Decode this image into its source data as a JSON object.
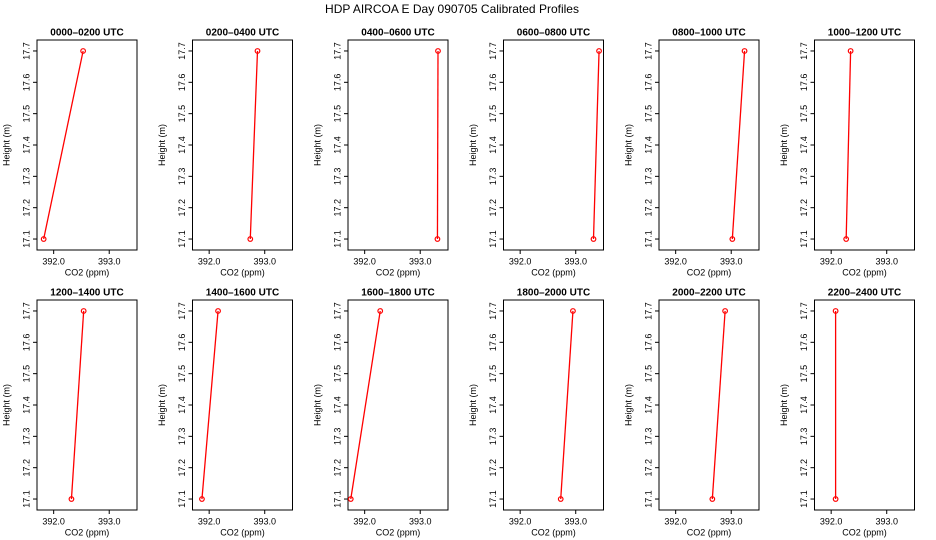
{
  "title": "HDP AIRCOA E  Day 090705  Calibrated Profiles",
  "chart_data": [
    {
      "type": "line",
      "title": "0000–0200 UTC",
      "xlabel": "CO2 (ppm)",
      "ylabel": "Height (m)",
      "x": [
        391.82,
        392.53
      ],
      "values": [
        17.1,
        17.7
      ],
      "color": "#ff0000",
      "xlim": [
        391.7,
        393.5
      ],
      "ylim": [
        17.065,
        17.735
      ],
      "xticks": [
        {
          "value": 392,
          "label": "392.0"
        },
        {
          "value": 393,
          "label": "393.0"
        }
      ],
      "yticks": [
        17.1,
        17.2,
        17.3,
        17.4,
        17.5,
        17.6,
        17.7
      ]
    },
    {
      "type": "line",
      "title": "0200–0400 UTC",
      "xlabel": "CO2 (ppm)",
      "ylabel": "Height (m)",
      "x": [
        392.74,
        392.87
      ],
      "values": [
        17.1,
        17.7
      ],
      "color": "#ff0000",
      "xlim": [
        391.7,
        393.5
      ],
      "ylim": [
        17.065,
        17.735
      ],
      "xticks": [
        {
          "value": 392,
          "label": "392.0"
        },
        {
          "value": 393,
          "label": "393.0"
        }
      ],
      "yticks": [
        17.1,
        17.2,
        17.3,
        17.4,
        17.5,
        17.6,
        17.7
      ]
    },
    {
      "type": "line",
      "title": "0400–0600 UTC",
      "xlabel": "CO2 (ppm)",
      "ylabel": "Height (m)",
      "x": [
        393.31,
        393.32
      ],
      "values": [
        17.1,
        17.7
      ],
      "color": "#ff0000",
      "xlim": [
        391.7,
        393.5
      ],
      "ylim": [
        17.065,
        17.735
      ],
      "xticks": [
        {
          "value": 392,
          "label": "392.0"
        },
        {
          "value": 393,
          "label": "393.0"
        }
      ],
      "yticks": [
        17.1,
        17.2,
        17.3,
        17.4,
        17.5,
        17.6,
        17.7
      ]
    },
    {
      "type": "line",
      "title": "0600–0800 UTC",
      "xlabel": "CO2 (ppm)",
      "ylabel": "Height (m)",
      "x": [
        393.32,
        393.42
      ],
      "values": [
        17.1,
        17.7
      ],
      "color": "#ff0000",
      "xlim": [
        391.7,
        393.5
      ],
      "ylim": [
        17.065,
        17.735
      ],
      "xticks": [
        {
          "value": 392,
          "label": "392.0"
        },
        {
          "value": 393,
          "label": "393.0"
        }
      ],
      "yticks": [
        17.1,
        17.2,
        17.3,
        17.4,
        17.5,
        17.6,
        17.7
      ]
    },
    {
      "type": "line",
      "title": "0800–1000 UTC",
      "xlabel": "CO2 (ppm)",
      "ylabel": "Height (m)",
      "x": [
        393.02,
        393.24
      ],
      "values": [
        17.1,
        17.7
      ],
      "color": "#ff0000",
      "xlim": [
        391.7,
        393.5
      ],
      "ylim": [
        17.065,
        17.735
      ],
      "xticks": [
        {
          "value": 392,
          "label": "392.0"
        },
        {
          "value": 393,
          "label": "393.0"
        }
      ],
      "yticks": [
        17.1,
        17.2,
        17.3,
        17.4,
        17.5,
        17.6,
        17.7
      ]
    },
    {
      "type": "line",
      "title": "1000–1200 UTC",
      "xlabel": "CO2 (ppm)",
      "ylabel": "Height (m)",
      "x": [
        392.27,
        392.35
      ],
      "values": [
        17.1,
        17.7
      ],
      "color": "#ff0000",
      "xlim": [
        391.7,
        393.5
      ],
      "ylim": [
        17.065,
        17.735
      ],
      "xticks": [
        {
          "value": 392,
          "label": "392.0"
        },
        {
          "value": 393,
          "label": "393.0"
        }
      ],
      "yticks": [
        17.1,
        17.2,
        17.3,
        17.4,
        17.5,
        17.6,
        17.7
      ]
    },
    {
      "type": "line",
      "title": "1200–1400 UTC",
      "xlabel": "CO2 (ppm)",
      "ylabel": "Height (m)",
      "x": [
        392.32,
        392.54
      ],
      "values": [
        17.1,
        17.7
      ],
      "color": "#ff0000",
      "xlim": [
        391.7,
        393.5
      ],
      "ylim": [
        17.065,
        17.735
      ],
      "xticks": [
        {
          "value": 392,
          "label": "392.0"
        },
        {
          "value": 393,
          "label": "393.0"
        }
      ],
      "yticks": [
        17.1,
        17.2,
        17.3,
        17.4,
        17.5,
        17.6,
        17.7
      ]
    },
    {
      "type": "line",
      "title": "1400–1600 UTC",
      "xlabel": "CO2 (ppm)",
      "ylabel": "Height (m)",
      "x": [
        391.87,
        392.16
      ],
      "values": [
        17.1,
        17.7
      ],
      "color": "#ff0000",
      "xlim": [
        391.7,
        393.5
      ],
      "ylim": [
        17.065,
        17.735
      ],
      "xticks": [
        {
          "value": 392,
          "label": "392.0"
        },
        {
          "value": 393,
          "label": "393.0"
        }
      ],
      "yticks": [
        17.1,
        17.2,
        17.3,
        17.4,
        17.5,
        17.6,
        17.7
      ]
    },
    {
      "type": "line",
      "title": "1600–1800 UTC",
      "xlabel": "CO2 (ppm)",
      "ylabel": "Height (m)",
      "x": [
        391.75,
        392.28
      ],
      "values": [
        17.1,
        17.7
      ],
      "color": "#ff0000",
      "xlim": [
        391.7,
        393.5
      ],
      "ylim": [
        17.065,
        17.735
      ],
      "xticks": [
        {
          "value": 392,
          "label": "392.0"
        },
        {
          "value": 393,
          "label": "393.0"
        }
      ],
      "yticks": [
        17.1,
        17.2,
        17.3,
        17.4,
        17.5,
        17.6,
        17.7
      ]
    },
    {
      "type": "line",
      "title": "1800–2000 UTC",
      "xlabel": "CO2 (ppm)",
      "ylabel": "Height (m)",
      "x": [
        392.73,
        392.95
      ],
      "values": [
        17.1,
        17.7
      ],
      "color": "#ff0000",
      "xlim": [
        391.7,
        393.5
      ],
      "ylim": [
        17.065,
        17.735
      ],
      "xticks": [
        {
          "value": 392,
          "label": "392.0"
        },
        {
          "value": 393,
          "label": "393.0"
        }
      ],
      "yticks": [
        17.1,
        17.2,
        17.3,
        17.4,
        17.5,
        17.6,
        17.7
      ]
    },
    {
      "type": "line",
      "title": "2000–2200 UTC",
      "xlabel": "CO2 (ppm)",
      "ylabel": "Height (m)",
      "x": [
        392.66,
        392.89
      ],
      "values": [
        17.1,
        17.7
      ],
      "color": "#ff0000",
      "xlim": [
        391.7,
        393.5
      ],
      "ylim": [
        17.065,
        17.735
      ],
      "xticks": [
        {
          "value": 392,
          "label": "392.0"
        },
        {
          "value": 393,
          "label": "393.0"
        }
      ],
      "yticks": [
        17.1,
        17.2,
        17.3,
        17.4,
        17.5,
        17.6,
        17.7
      ]
    },
    {
      "type": "line",
      "title": "2200–2400 UTC",
      "xlabel": "CO2 (ppm)",
      "ylabel": "Height (m)",
      "x": [
        392.08,
        392.08
      ],
      "values": [
        17.1,
        17.7
      ],
      "color": "#ff0000",
      "xlim": [
        391.7,
        393.5
      ],
      "ylim": [
        17.065,
        17.735
      ],
      "xticks": [
        {
          "value": 392,
          "label": "392.0"
        },
        {
          "value": 393,
          "label": "393.0"
        }
      ],
      "yticks": [
        17.1,
        17.2,
        17.3,
        17.4,
        17.5,
        17.6,
        17.7
      ]
    }
  ]
}
